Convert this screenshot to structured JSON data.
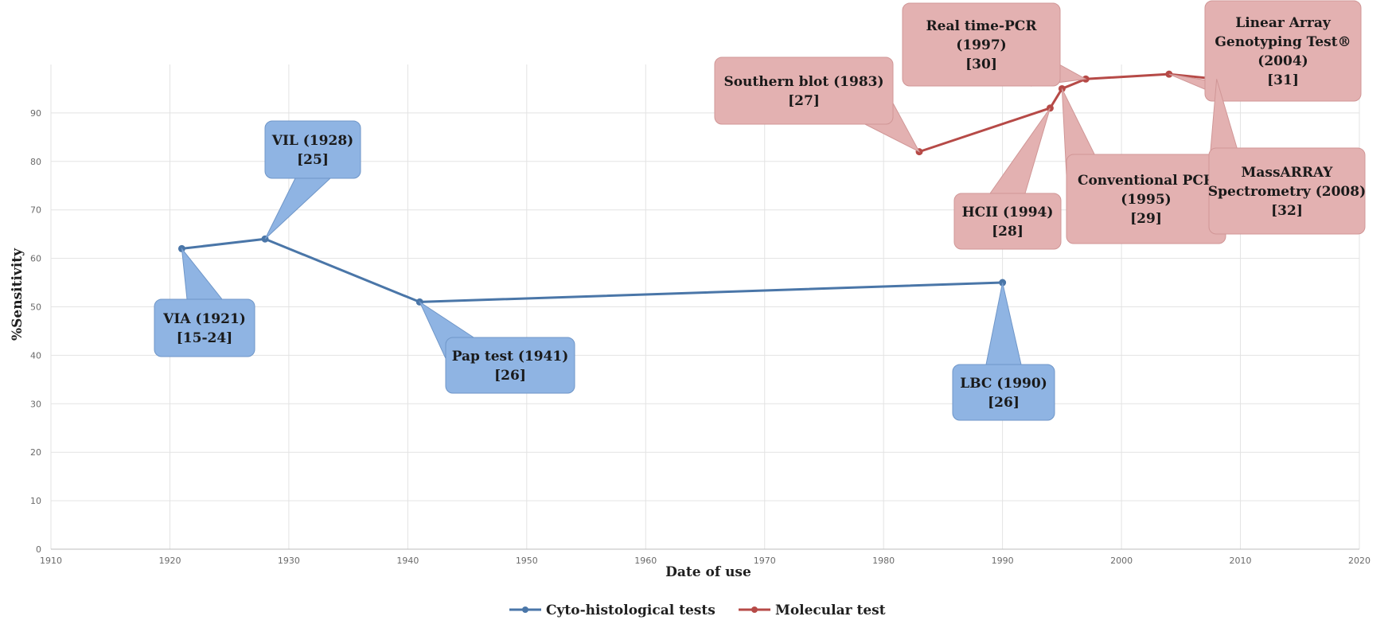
{
  "chart_data": {
    "type": "line",
    "xlabel": "Date of use",
    "ylabel": "%Sensitivity",
    "xlim": [
      1910,
      2020
    ],
    "ylim": [
      0,
      100
    ],
    "x_ticks": [
      "1910",
      "1920",
      "1930",
      "1940",
      "1950",
      "1960",
      "1970",
      "1980",
      "1990",
      "2000",
      "2010",
      "2020"
    ],
    "y_ticks": [
      "0",
      "10",
      "20",
      "30",
      "40",
      "50",
      "60",
      "70",
      "80",
      "90"
    ],
    "grid": true,
    "legend_position": "bottom",
    "series": [
      {
        "name": "Cyto-histological tests",
        "color": "#4a76a8",
        "callout_fill": "#8fb4e3",
        "callout_stroke": "#6f96c8",
        "points": [
          {
            "x": 1921,
            "y": 62,
            "label": [
              "VIA (1921)",
              "[15-24]"
            ]
          },
          {
            "x": 1928,
            "y": 64,
            "label": [
              "VIL (1928)",
              "[25]"
            ]
          },
          {
            "x": 1941,
            "y": 51,
            "label": [
              "Pap test (1941)",
              "[26]"
            ]
          },
          {
            "x": 1990,
            "y": 55,
            "label": [
              "LBC (1990)",
              "[26]"
            ]
          }
        ]
      },
      {
        "name": "Molecular test",
        "color": "#b64a47",
        "callout_fill": "#e3b1b1",
        "callout_stroke": "#d09696",
        "points": [
          {
            "x": 1983,
            "y": 82,
            "label": [
              "Southern blot (1983)",
              "[27]"
            ]
          },
          {
            "x": 1994,
            "y": 91,
            "label": [
              "HCII (1994)",
              "[28]"
            ]
          },
          {
            "x": 1995,
            "y": 95,
            "label": [
              "Conventional PCR",
              "(1995)",
              "[29]"
            ]
          },
          {
            "x": 1997,
            "y": 97,
            "label": [
              "Real time-PCR",
              "(1997)",
              "[30]"
            ]
          },
          {
            "x": 2004,
            "y": 98,
            "label": [
              "Linear Array",
              "Genotyping Test®",
              "(2004)",
              "[31]"
            ]
          },
          {
            "x": 2008,
            "y": 97,
            "label": [
              "MassARRAY",
              "Spectrometry (2008)",
              "[32]"
            ]
          }
        ]
      }
    ]
  }
}
